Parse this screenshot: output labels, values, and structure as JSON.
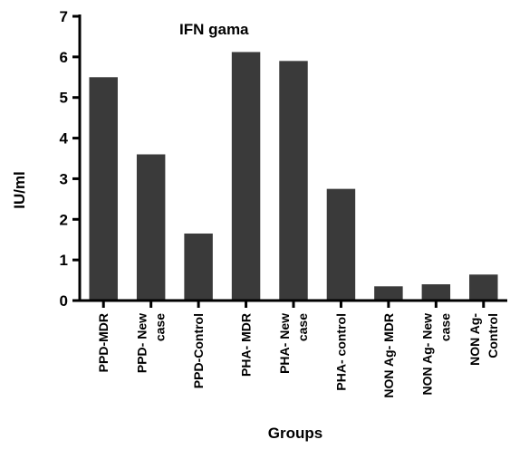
{
  "chart_data": {
    "type": "bar",
    "title": "IFN gama",
    "xlabel": "Groups",
    "ylabel": "IU/ml",
    "ylim": [
      0,
      7
    ],
    "yticks": [
      0,
      1,
      2,
      3,
      4,
      5,
      6,
      7
    ],
    "grid": false,
    "bar_color": "#3a3a3a",
    "categories": [
      [
        "PPD-MDR"
      ],
      [
        "PPD- New",
        "case"
      ],
      [
        "PPD-Control"
      ],
      [
        "PHA- MDR"
      ],
      [
        "PHA- New",
        "case"
      ],
      [
        "PHA- control"
      ],
      [
        "NON Ag- MDR"
      ],
      [
        "NON Ag- New",
        "case"
      ],
      [
        "NON Ag-",
        "Control"
      ]
    ],
    "values": [
      5.5,
      3.6,
      1.65,
      6.12,
      5.9,
      2.75,
      0.35,
      0.4,
      0.64
    ]
  }
}
